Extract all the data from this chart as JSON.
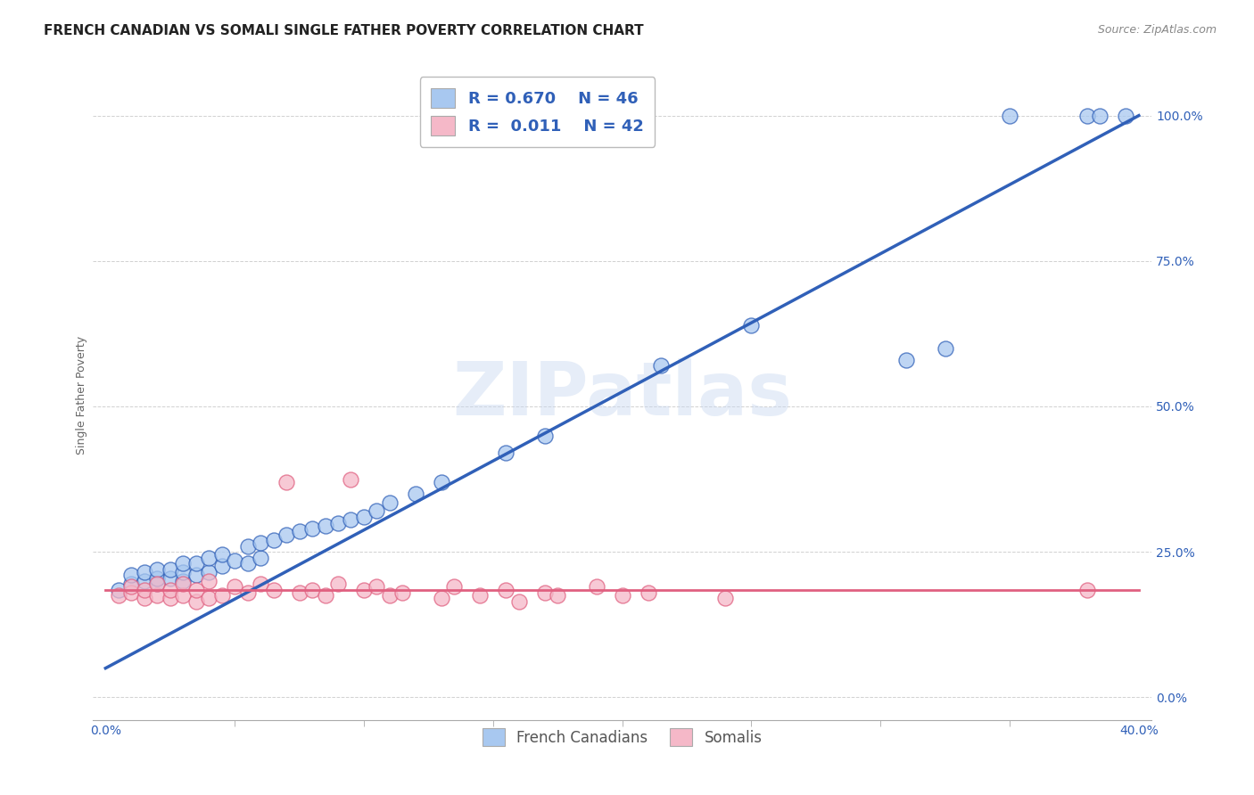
{
  "title": "FRENCH CANADIAN VS SOMALI SINGLE FATHER POVERTY CORRELATION CHART",
  "source": "Source: ZipAtlas.com",
  "ylabel": "Single Father Poverty",
  "ytick_labels": [
    "0.0%",
    "25.0%",
    "50.0%",
    "75.0%",
    "100.0%"
  ],
  "ytick_values": [
    0.0,
    0.25,
    0.5,
    0.75,
    1.0
  ],
  "xtick_edge_labels": [
    "0.0%",
    "40.0%"
  ],
  "xtick_minor_values": [
    0.05,
    0.1,
    0.15,
    0.2,
    0.25,
    0.3,
    0.35
  ],
  "xlim": [
    -0.005,
    0.405
  ],
  "ylim": [
    -0.04,
    1.08
  ],
  "french_color": "#A8C8F0",
  "somali_color": "#F5B8C8",
  "french_line_color": "#3060B8",
  "somali_line_color": "#E06080",
  "watermark": "ZIPatlas",
  "background_color": "#FFFFFF",
  "french_x": [
    0.005,
    0.01,
    0.01,
    0.015,
    0.015,
    0.02,
    0.02,
    0.02,
    0.025,
    0.025,
    0.03,
    0.03,
    0.03,
    0.035,
    0.035,
    0.04,
    0.04,
    0.045,
    0.045,
    0.05,
    0.055,
    0.055,
    0.06,
    0.06,
    0.065,
    0.07,
    0.075,
    0.08,
    0.085,
    0.09,
    0.095,
    0.1,
    0.105,
    0.11,
    0.12,
    0.13,
    0.155,
    0.17,
    0.215,
    0.25,
    0.31,
    0.325,
    0.35,
    0.38,
    0.385,
    0.395
  ],
  "french_y": [
    0.185,
    0.195,
    0.21,
    0.2,
    0.215,
    0.195,
    0.205,
    0.22,
    0.205,
    0.22,
    0.2,
    0.215,
    0.23,
    0.21,
    0.23,
    0.215,
    0.24,
    0.225,
    0.245,
    0.235,
    0.23,
    0.26,
    0.24,
    0.265,
    0.27,
    0.28,
    0.285,
    0.29,
    0.295,
    0.3,
    0.305,
    0.31,
    0.32,
    0.335,
    0.35,
    0.37,
    0.42,
    0.45,
    0.57,
    0.64,
    0.58,
    0.6,
    1.0,
    1.0,
    1.0,
    1.0
  ],
  "somali_x": [
    0.005,
    0.01,
    0.01,
    0.015,
    0.015,
    0.02,
    0.02,
    0.025,
    0.025,
    0.03,
    0.03,
    0.035,
    0.035,
    0.04,
    0.04,
    0.045,
    0.05,
    0.055,
    0.06,
    0.065,
    0.07,
    0.075,
    0.08,
    0.085,
    0.09,
    0.095,
    0.1,
    0.105,
    0.11,
    0.115,
    0.13,
    0.135,
    0.145,
    0.155,
    0.16,
    0.17,
    0.175,
    0.19,
    0.2,
    0.21,
    0.24,
    0.38
  ],
  "somali_y": [
    0.175,
    0.18,
    0.19,
    0.17,
    0.185,
    0.175,
    0.195,
    0.17,
    0.185,
    0.175,
    0.195,
    0.165,
    0.185,
    0.17,
    0.2,
    0.175,
    0.19,
    0.18,
    0.195,
    0.185,
    0.37,
    0.18,
    0.185,
    0.175,
    0.195,
    0.375,
    0.185,
    0.19,
    0.175,
    0.18,
    0.17,
    0.19,
    0.175,
    0.185,
    0.165,
    0.18,
    0.175,
    0.19,
    0.175,
    0.18,
    0.17,
    0.185
  ],
  "title_fontsize": 11,
  "axis_label_fontsize": 9,
  "tick_fontsize": 10,
  "legend_fontsize": 13
}
